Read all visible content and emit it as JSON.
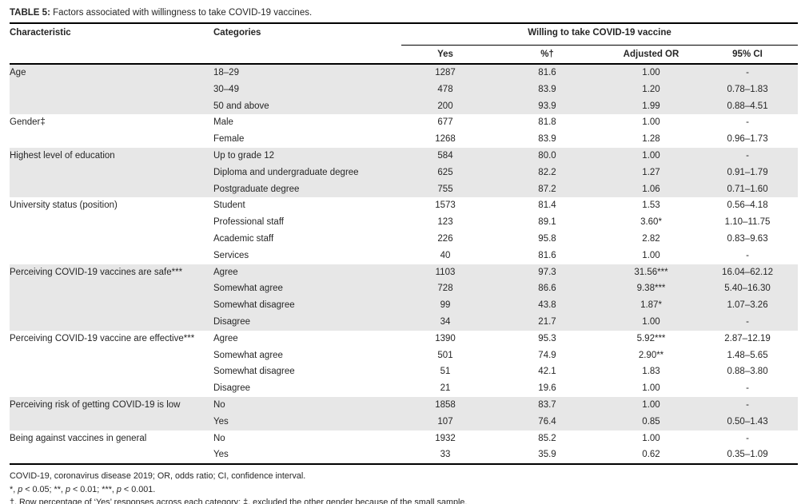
{
  "title": {
    "label": "TABLE 5:",
    "text": "Factors associated with willingness to take COVID-19 vaccines."
  },
  "table": {
    "header": {
      "characteristic": "Characteristic",
      "categories": "Categories",
      "spanner": "Willing to take COVID-19 vaccine",
      "sub": [
        "Yes",
        "%†",
        "Adjusted OR",
        "95% CI"
      ]
    },
    "groups": [
      {
        "characteristic": "Age",
        "shaded": true,
        "rows": [
          {
            "category": "18–29",
            "yes": "1287",
            "pct": "81.6",
            "or": "1.00",
            "ci": "-"
          },
          {
            "category": "30–49",
            "yes": "478",
            "pct": "83.9",
            "or": "1.20",
            "ci": "0.78–1.83"
          },
          {
            "category": "50 and above",
            "yes": "200",
            "pct": "93.9",
            "or": "1.99",
            "ci": "0.88–4.51"
          }
        ]
      },
      {
        "characteristic": "Gender‡",
        "shaded": false,
        "rows": [
          {
            "category": "Male",
            "yes": "677",
            "pct": "81.8",
            "or": "1.00",
            "ci": "-"
          },
          {
            "category": "Female",
            "yes": "1268",
            "pct": "83.9",
            "or": "1.28",
            "ci": "0.96–1.73"
          }
        ]
      },
      {
        "characteristic": "Highest level of education",
        "shaded": true,
        "rows": [
          {
            "category": "Up to grade 12",
            "yes": "584",
            "pct": "80.0",
            "or": "1.00",
            "ci": "-"
          },
          {
            "category": "Diploma and undergraduate degree",
            "yes": "625",
            "pct": "82.2",
            "or": "1.27",
            "ci": "0.91–1.79"
          },
          {
            "category": "Postgraduate degree",
            "yes": "755",
            "pct": "87.2",
            "or": "1.06",
            "ci": "0.71–1.60"
          }
        ]
      },
      {
        "characteristic": "University status (position)",
        "shaded": false,
        "rows": [
          {
            "category": "Student",
            "yes": "1573",
            "pct": "81.4",
            "or": "1.53",
            "ci": "0.56–4.18"
          },
          {
            "category": "Professional staff",
            "yes": "123",
            "pct": "89.1",
            "or": "3.60*",
            "ci": "1.10–11.75"
          },
          {
            "category": "Academic staff",
            "yes": "226",
            "pct": "95.8",
            "or": "2.82",
            "ci": "0.83–9.63"
          },
          {
            "category": "Services",
            "yes": "40",
            "pct": "81.6",
            "or": "1.00",
            "ci": "-"
          }
        ]
      },
      {
        "characteristic": "Perceiving COVID-19 vaccines are safe***",
        "shaded": true,
        "rows": [
          {
            "category": "Agree",
            "yes": "1103",
            "pct": "97.3",
            "or": "31.56***",
            "ci": "16.04–62.12"
          },
          {
            "category": "Somewhat agree",
            "yes": "728",
            "pct": "86.6",
            "or": "9.38***",
            "ci": "5.40–16.30"
          },
          {
            "category": "Somewhat disagree",
            "yes": "99",
            "pct": "43.8",
            "or": "1.87*",
            "ci": "1.07–3.26"
          },
          {
            "category": "Disagree",
            "yes": "34",
            "pct": "21.7",
            "or": "1.00",
            "ci": "-"
          }
        ]
      },
      {
        "characteristic": "Perceiving COVID-19 vaccine are effective***",
        "shaded": false,
        "rows": [
          {
            "category": "Agree",
            "yes": "1390",
            "pct": "95.3",
            "or": "5.92***",
            "ci": "2.87–12.19"
          },
          {
            "category": "Somewhat agree",
            "yes": "501",
            "pct": "74.9",
            "or": "2.90**",
            "ci": "1.48–5.65"
          },
          {
            "category": "Somewhat disagree",
            "yes": "51",
            "pct": "42.1",
            "or": "1.83",
            "ci": "0.88–3.80"
          },
          {
            "category": "Disagree",
            "yes": "21",
            "pct": "19.6",
            "or": "1.00",
            "ci": "-"
          }
        ]
      },
      {
        "characteristic": "Perceiving risk of getting COVID-19 is low",
        "shaded": true,
        "rows": [
          {
            "category": "No",
            "yes": "1858",
            "pct": "83.7",
            "or": "1.00",
            "ci": "-"
          },
          {
            "category": "Yes",
            "yes": "107",
            "pct": "76.4",
            "or": "0.85",
            "ci": "0.50–1.43"
          }
        ]
      },
      {
        "characteristic": "Being against vaccines in general",
        "shaded": false,
        "rows": [
          {
            "category": "No",
            "yes": "1932",
            "pct": "85.2",
            "or": "1.00",
            "ci": "-"
          },
          {
            "category": "Yes",
            "yes": "33",
            "pct": "35.9",
            "or": "0.62",
            "ci": "0.35–1.09"
          }
        ]
      }
    ]
  },
  "footnotes": [
    "COVID-19, coronavirus disease 2019; OR, odds ratio; CI, confidence interval.",
    "*, p < 0.05; **, p < 0.01; ***, p < 0.001.",
    "†, Row percentage of ‘Yes’ responses across each category; ‡, excluded the other gender because of the small sample."
  ],
  "colors": {
    "row_shade": "#e7e7e7",
    "text": "#262626",
    "rule": "#000000"
  }
}
